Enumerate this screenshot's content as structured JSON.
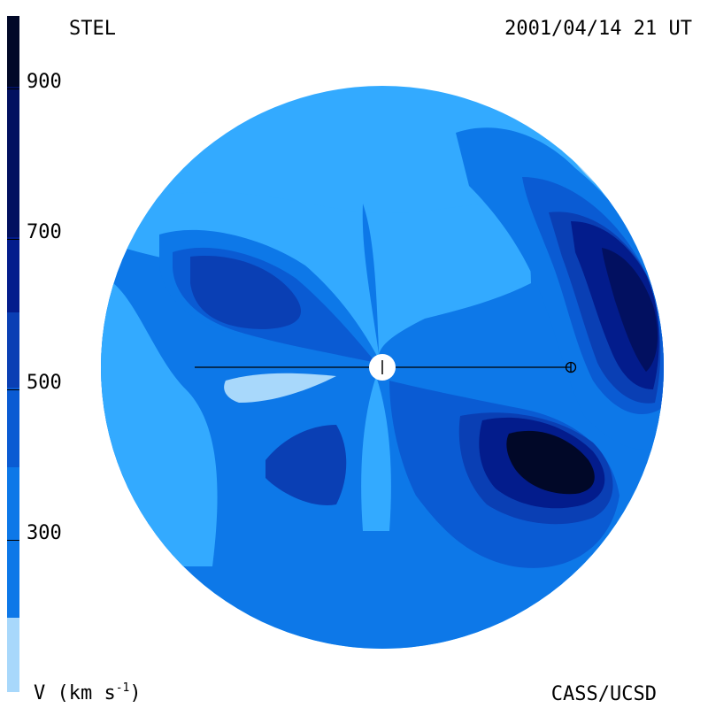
{
  "header": {
    "title": "STEL",
    "datetime": "2001/04/14 21 UT"
  },
  "footer": {
    "unit_base": "V (km s",
    "unit_exp": "-1",
    "unit_close": ")",
    "credit": "CASS/UCSD"
  },
  "colorbar": {
    "labels": [
      "900",
      "700",
      "500",
      "300"
    ],
    "colors": [
      "#a8d8fb",
      "#33aaff",
      "#0d78e8",
      "#0a5bd3",
      "#0a3fb4",
      "#031c8c",
      "#021060",
      "#010828"
    ]
  },
  "map": {
    "background": "#33aaff",
    "sun_label": "sun",
    "earth_label": "earth"
  }
}
